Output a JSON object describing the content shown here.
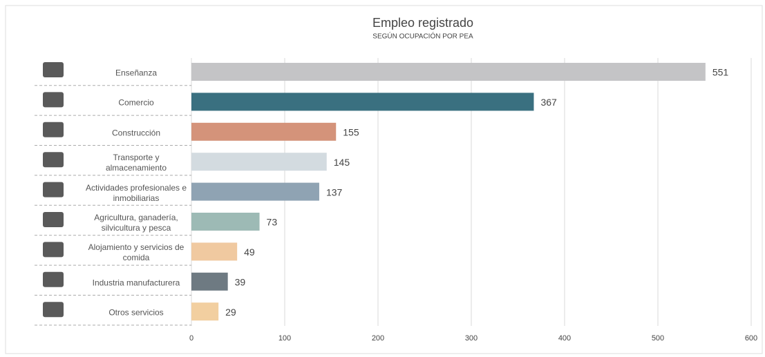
{
  "chart_data": {
    "type": "barh",
    "title": "Empleo registrado",
    "subtitle": "SEGÚN OCUPACIÓN POR PEA",
    "categories": [
      "Enseñanza",
      "Comercio",
      "Construcción",
      "Transporte y almacenamiento",
      "Actividades profesionales e inmobiliarias",
      "Agricultura, ganadería, silvicultura y pesca",
      "Alojamiento y servicios de comida",
      "Industria manufacturera",
      "Otros servicios"
    ],
    "values": [
      551,
      367,
      155,
      145,
      137,
      73,
      49,
      39,
      29
    ],
    "colors": [
      "#c4c4c6",
      "#3a7080",
      "#d4937a",
      "#d3dbe0",
      "#8fa3b3",
      "#9dbab5",
      "#f0c9a0",
      "#6e7a82",
      "#f2cfa0"
    ],
    "xlim": [
      0,
      600
    ],
    "xticks": [
      0,
      100,
      200,
      300,
      400,
      500,
      600
    ],
    "grid": true
  }
}
